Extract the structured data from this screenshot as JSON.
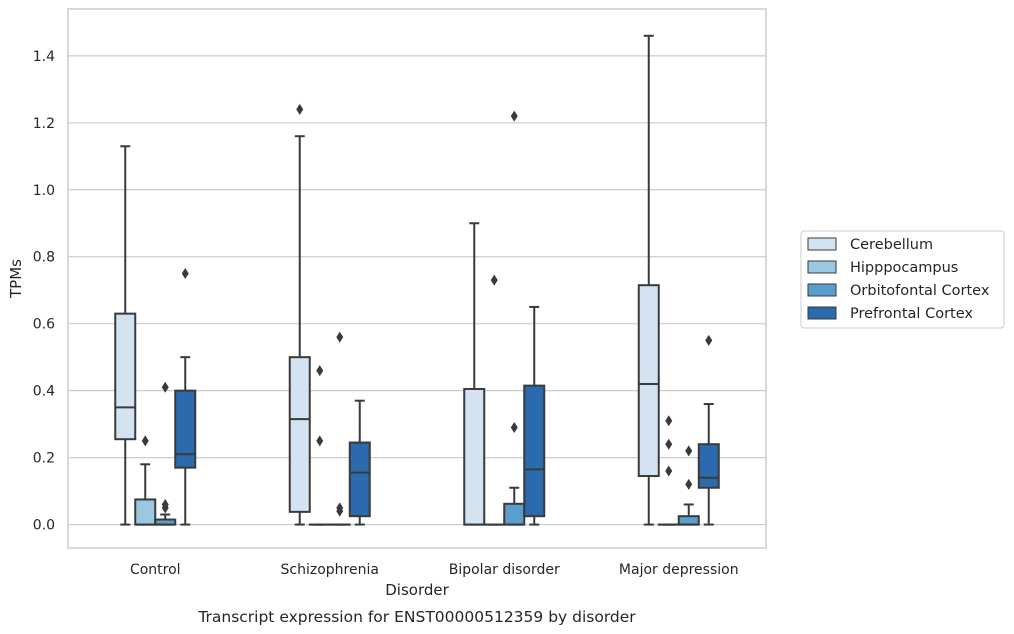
{
  "chart_data": {
    "type": "box",
    "caption": "Transcript expression for ENST00000512359 by disorder",
    "xlabel": "Disorder",
    "ylabel": "TPMs",
    "ylim": [
      -0.07,
      1.54
    ],
    "yticks": [
      0.0,
      0.2,
      0.4,
      0.6,
      0.8,
      1.0,
      1.2,
      1.4
    ],
    "grid": true,
    "legend_position": "right",
    "categories": [
      "Control",
      "Schizophrenia",
      "Bipolar disorder",
      "Major depression"
    ],
    "series": [
      {
        "name": "Cerebellum",
        "color": "#d3e3f2",
        "boxes": [
          {
            "whislo": 0.0,
            "q1": 0.255,
            "med": 0.35,
            "q3": 0.63,
            "whishi": 1.13,
            "fliers": []
          },
          {
            "whislo": 0.0,
            "q1": 0.038,
            "med": 0.315,
            "q3": 0.5,
            "whishi": 1.16,
            "fliers": [
              1.24
            ]
          },
          {
            "whislo": 0.0,
            "q1": 0.0,
            "med": 0.0,
            "q3": 0.405,
            "whishi": 0.9,
            "fliers": []
          },
          {
            "whislo": 0.0,
            "q1": 0.145,
            "med": 0.42,
            "q3": 0.715,
            "whishi": 1.46,
            "fliers": []
          }
        ]
      },
      {
        "name": "Hipppocampus",
        "color": "#9ac8e0",
        "boxes": [
          {
            "whislo": 0.0,
            "q1": 0.0,
            "med": 0.0,
            "q3": 0.075,
            "whishi": 0.18,
            "fliers": [
              0.25
            ]
          },
          {
            "whislo": 0.0,
            "q1": 0.0,
            "med": 0.0,
            "q3": 0.0,
            "whishi": 0.0,
            "fliers": [
              0.25,
              0.46
            ]
          },
          {
            "whislo": 0.0,
            "q1": 0.0,
            "med": 0.0,
            "q3": 0.0,
            "whishi": 0.0,
            "fliers": [
              0.73
            ]
          },
          {
            "whislo": 0.0,
            "q1": 0.0,
            "med": 0.0,
            "q3": 0.0,
            "whishi": 0.0,
            "fliers": [
              0.16,
              0.24,
              0.31
            ]
          }
        ]
      },
      {
        "name": "Orbitofontal Cortex",
        "color": "#5a9ecc",
        "boxes": [
          {
            "whislo": 0.0,
            "q1": 0.0,
            "med": 0.0,
            "q3": 0.015,
            "whishi": 0.03,
            "fliers": [
              0.05,
              0.06,
              0.41
            ]
          },
          {
            "whislo": 0.0,
            "q1": 0.0,
            "med": 0.0,
            "q3": 0.0,
            "whishi": 0.0,
            "fliers": [
              0.04,
              0.05,
              0.56
            ]
          },
          {
            "whislo": 0.0,
            "q1": 0.0,
            "med": 0.0,
            "q3": 0.062,
            "whishi": 0.11,
            "fliers": [
              0.29,
              1.22
            ]
          },
          {
            "whislo": 0.0,
            "q1": 0.0,
            "med": 0.0,
            "q3": 0.025,
            "whishi": 0.06,
            "fliers": [
              0.12,
              0.22
            ]
          }
        ]
      },
      {
        "name": "Prefrontal Cortex",
        "color": "#2a6aad",
        "boxes": [
          {
            "whislo": 0.0,
            "q1": 0.17,
            "med": 0.21,
            "q3": 0.4,
            "whishi": 0.5,
            "fliers": [
              0.75
            ]
          },
          {
            "whislo": 0.0,
            "q1": 0.025,
            "med": 0.155,
            "q3": 0.245,
            "whishi": 0.37,
            "fliers": []
          },
          {
            "whislo": 0.0,
            "q1": 0.025,
            "med": 0.165,
            "q3": 0.415,
            "whishi": 0.65,
            "fliers": []
          },
          {
            "whislo": 0.0,
            "q1": 0.11,
            "med": 0.14,
            "q3": 0.24,
            "whishi": 0.36,
            "fliers": [
              0.55
            ]
          }
        ]
      }
    ]
  }
}
